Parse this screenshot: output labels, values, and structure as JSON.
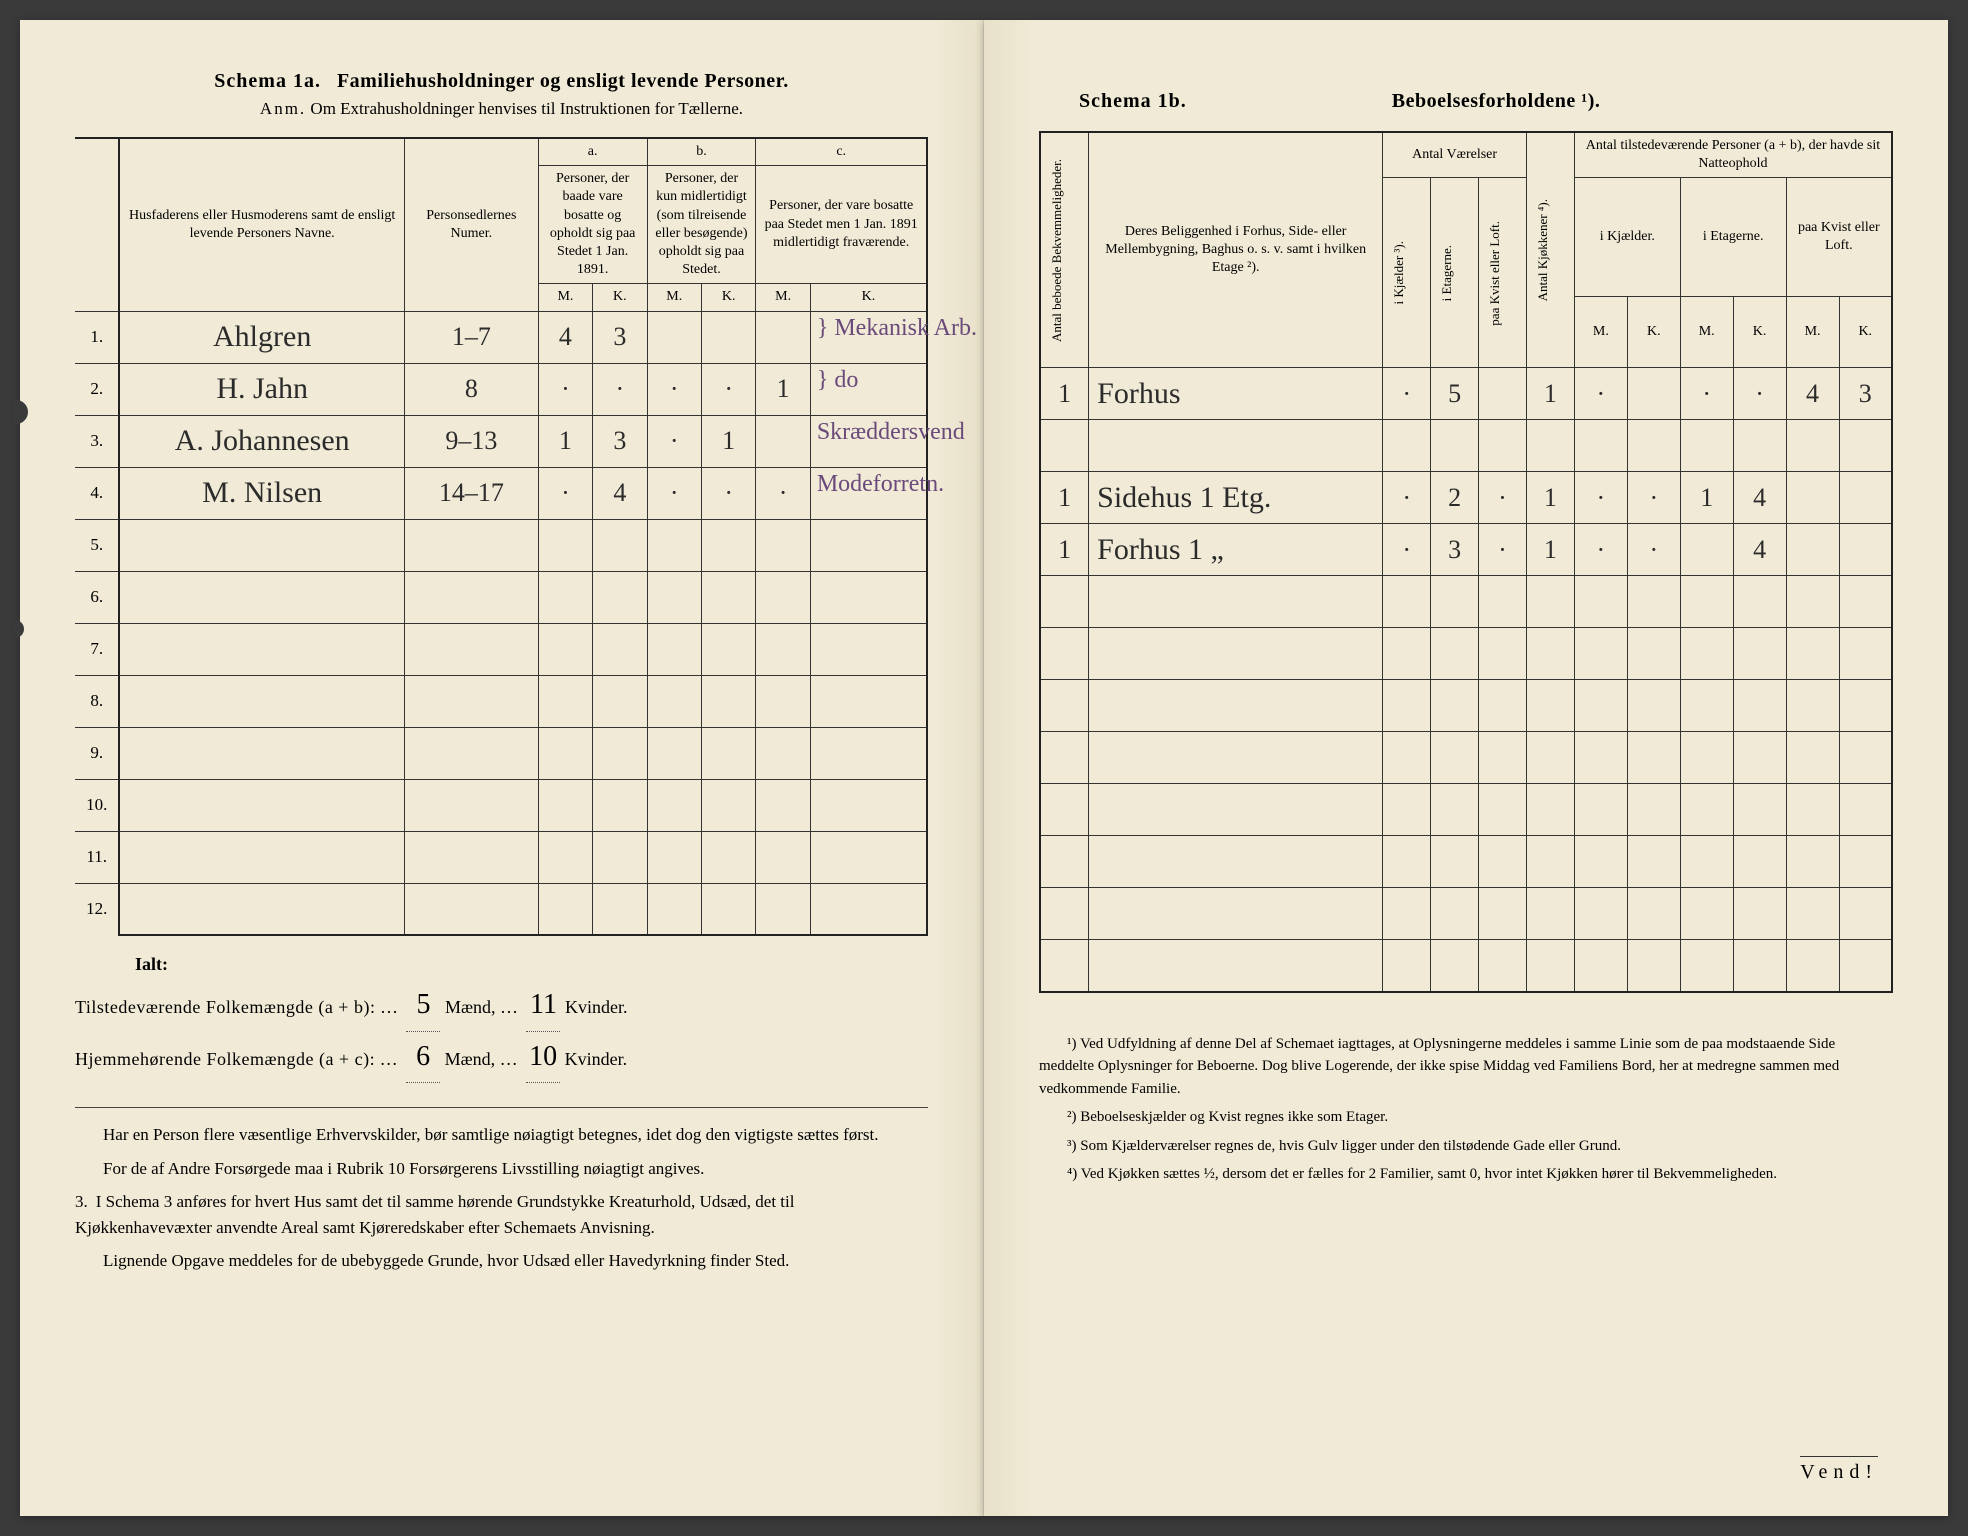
{
  "left": {
    "schema_label": "Schema 1a.",
    "schema_title": "Familiehusholdninger og ensligt levende Personer.",
    "anm_label": "Anm.",
    "anm_text": "Om Extrahusholdninger henvises til Instruktionen for Tællerne.",
    "col_name": "Husfaderens eller Husmoderens samt de ensligt levende Personers Navne.",
    "col_person": "Personsedlernes Numer.",
    "group_a": "a.",
    "group_b": "b.",
    "group_c": "c.",
    "col_a": "Personer, der baade vare bosatte og opholdt sig paa Stedet 1 Jan. 1891.",
    "col_b": "Personer, der kun midlertidigt (som tilreisende eller besøgende) opholdt sig paa Stedet.",
    "col_c": "Personer, der vare bosatte paa Stedet men 1 Jan. 1891 midlertidigt fraværende.",
    "mk_m": "M.",
    "mk_k": "K.",
    "rows": [
      {
        "n": "1.",
        "name": "Ahlgren",
        "ps": "1–7",
        "am": "4",
        "ak": "3",
        "bm": "",
        "bk": "",
        "cm": "",
        "ck": "",
        "note": "Mekanisk Arb."
      },
      {
        "n": "2.",
        "name": "H. Jahn",
        "ps": "8",
        "am": "·",
        "ak": "·",
        "bm": "·",
        "bk": "·",
        "cm": "1",
        "ck": "",
        "note": "do"
      },
      {
        "n": "3.",
        "name": "A. Johannesen",
        "ps": "9–13",
        "am": "1",
        "ak": "3",
        "bm": "·",
        "bk": "1",
        "cm": "",
        "ck": "",
        "note": "Skræddersvend"
      },
      {
        "n": "4.",
        "name": "M. Nilsen",
        "ps": "14–17",
        "am": "·",
        "ak": "4",
        "bm": "·",
        "bk": "·",
        "cm": "·",
        "ck": "",
        "note": "Modeforretn."
      },
      {
        "n": "5.",
        "name": "",
        "ps": "",
        "am": "",
        "ak": "",
        "bm": "",
        "bk": "",
        "cm": "",
        "ck": "",
        "note": ""
      },
      {
        "n": "6.",
        "name": "",
        "ps": "",
        "am": "",
        "ak": "",
        "bm": "",
        "bk": "",
        "cm": "",
        "ck": "",
        "note": ""
      },
      {
        "n": "7.",
        "name": "",
        "ps": "",
        "am": "",
        "ak": "",
        "bm": "",
        "bk": "",
        "cm": "",
        "ck": "",
        "note": ""
      },
      {
        "n": "8.",
        "name": "",
        "ps": "",
        "am": "",
        "ak": "",
        "bm": "",
        "bk": "",
        "cm": "",
        "ck": "",
        "note": ""
      },
      {
        "n": "9.",
        "name": "",
        "ps": "",
        "am": "",
        "ak": "",
        "bm": "",
        "bk": "",
        "cm": "",
        "ck": "",
        "note": ""
      },
      {
        "n": "10.",
        "name": "",
        "ps": "",
        "am": "",
        "ak": "",
        "bm": "",
        "bk": "",
        "cm": "",
        "ck": "",
        "note": ""
      },
      {
        "n": "11.",
        "name": "",
        "ps": "",
        "am": "",
        "ak": "",
        "bm": "",
        "bk": "",
        "cm": "",
        "ck": "",
        "note": ""
      },
      {
        "n": "12.",
        "name": "",
        "ps": "",
        "am": "",
        "ak": "",
        "bm": "",
        "bk": "",
        "cm": "",
        "ck": "",
        "note": ""
      }
    ],
    "ialt": "Ialt:",
    "tot1_label": "Tilstedeværende Folkemængde (a + b):",
    "tot1_m": "5",
    "tot1_k": "11",
    "tot2_label": "Hjemmehørende Folkemængde (a + c):",
    "tot2_m": "6",
    "tot2_k": "10",
    "maend": "Mænd,",
    "kvinder": "Kvinder.",
    "note1": "Har en Person flere væsentlige Erhvervskilder, bør samtlige nøiagtigt betegnes, idet dog den vigtigste sættes først.",
    "note2": "For de af Andre Forsørgede maa i Rubrik 10 Forsørgerens Livsstilling nøiagtigt angives.",
    "note3_num": "3.",
    "note3": "I Schema 3 anføres for hvert Hus samt det til samme hørende Grundstykke Kreaturhold, Udsæd, det til Kjøkkenhavevæxter anvendte Areal samt Kjøreredskaber efter Schemaets Anvisning.",
    "note4": "Lignende Opgave meddeles for de ubebyggede Grunde, hvor Udsæd eller Havedyrkning finder Sted."
  },
  "right": {
    "schema_label": "Schema 1b.",
    "schema_title": "Beboelsesforholdene ¹).",
    "col_bekv": "Antal beboede Bekvemmeligheder.",
    "col_belig": "Deres Beliggenhed i Forhus, Side- eller Mellembygning, Baghus o. s. v. samt i hvilken Etage ²).",
    "col_vaer": "Antal Værelser",
    "col_v1": "i Kjælder ³).",
    "col_v2": "i Etagerne.",
    "col_v3": "paa Kvist eller Loft.",
    "col_kjok": "Antal Kjøkkener ⁴).",
    "col_pers": "Antal tilstedeværende Personer (a + b), der havde sit Natteophold",
    "col_p1": "i Kjælder.",
    "col_p2": "i Etagerne.",
    "col_p3": "paa Kvist eller Loft.",
    "mk_m": "M.",
    "mk_k": "K.",
    "rows": [
      {
        "b": "1",
        "loc": "Forhus",
        "v1": "·",
        "v2": "5",
        "v3": "",
        "kj": "1",
        "p1m": "·",
        "p1k": "",
        "p2m": "·",
        "p2k": "·",
        "p3m": "4",
        "p3k": "3"
      },
      {
        "b": "",
        "loc": "",
        "v1": "",
        "v2": "",
        "v3": "",
        "kj": "",
        "p1m": "",
        "p1k": "",
        "p2m": "",
        "p2k": "",
        "p3m": "",
        "p3k": ""
      },
      {
        "b": "1",
        "loc": "Sidehus 1 Etg.",
        "v1": "·",
        "v2": "2",
        "v3": "·",
        "kj": "1",
        "p1m": "·",
        "p1k": "·",
        "p2m": "1",
        "p2k": "4",
        "p3m": "",
        "p3k": ""
      },
      {
        "b": "1",
        "loc": "Forhus 1 „",
        "v1": "·",
        "v2": "3",
        "v3": "·",
        "kj": "1",
        "p1m": "·",
        "p1k": "·",
        "p2m": "",
        "p2k": "4",
        "p3m": "",
        "p3k": ""
      },
      {
        "b": "",
        "loc": "",
        "v1": "",
        "v2": "",
        "v3": "",
        "kj": "",
        "p1m": "",
        "p1k": "",
        "p2m": "",
        "p2k": "",
        "p3m": "",
        "p3k": ""
      },
      {
        "b": "",
        "loc": "",
        "v1": "",
        "v2": "",
        "v3": "",
        "kj": "",
        "p1m": "",
        "p1k": "",
        "p2m": "",
        "p2k": "",
        "p3m": "",
        "p3k": ""
      },
      {
        "b": "",
        "loc": "",
        "v1": "",
        "v2": "",
        "v3": "",
        "kj": "",
        "p1m": "",
        "p1k": "",
        "p2m": "",
        "p2k": "",
        "p3m": "",
        "p3k": ""
      },
      {
        "b": "",
        "loc": "",
        "v1": "",
        "v2": "",
        "v3": "",
        "kj": "",
        "p1m": "",
        "p1k": "",
        "p2m": "",
        "p2k": "",
        "p3m": "",
        "p3k": ""
      },
      {
        "b": "",
        "loc": "",
        "v1": "",
        "v2": "",
        "v3": "",
        "kj": "",
        "p1m": "",
        "p1k": "",
        "p2m": "",
        "p2k": "",
        "p3m": "",
        "p3k": ""
      },
      {
        "b": "",
        "loc": "",
        "v1": "",
        "v2": "",
        "v3": "",
        "kj": "",
        "p1m": "",
        "p1k": "",
        "p2m": "",
        "p2k": "",
        "p3m": "",
        "p3k": ""
      },
      {
        "b": "",
        "loc": "",
        "v1": "",
        "v2": "",
        "v3": "",
        "kj": "",
        "p1m": "",
        "p1k": "",
        "p2m": "",
        "p2k": "",
        "p3m": "",
        "p3k": ""
      },
      {
        "b": "",
        "loc": "",
        "v1": "",
        "v2": "",
        "v3": "",
        "kj": "",
        "p1m": "",
        "p1k": "",
        "p2m": "",
        "p2k": "",
        "p3m": "",
        "p3k": ""
      }
    ],
    "fn1": "¹) Ved Udfyldning af denne Del af Schemaet iagttages, at Oplysningerne meddeles i samme Linie som de paa modstaaende Side meddelte Oplysninger for Beboerne. Dog blive Logerende, der ikke spise Middag ved Familiens Bord, her at medregne sammen med vedkommende Familie.",
    "fn2": "²) Beboelseskjælder og Kvist regnes ikke som Etager.",
    "fn3": "³) Som Kjælderværelser regnes de, hvis Gulv ligger under den tilstødende Gade eller Grund.",
    "fn4": "⁴) Ved Kjøkken sættes ½, dersom det er fælles for 2 Familier, samt 0, hvor intet Kjøkken hører til Bekvemmeligheden.",
    "vend": "Vend!"
  }
}
